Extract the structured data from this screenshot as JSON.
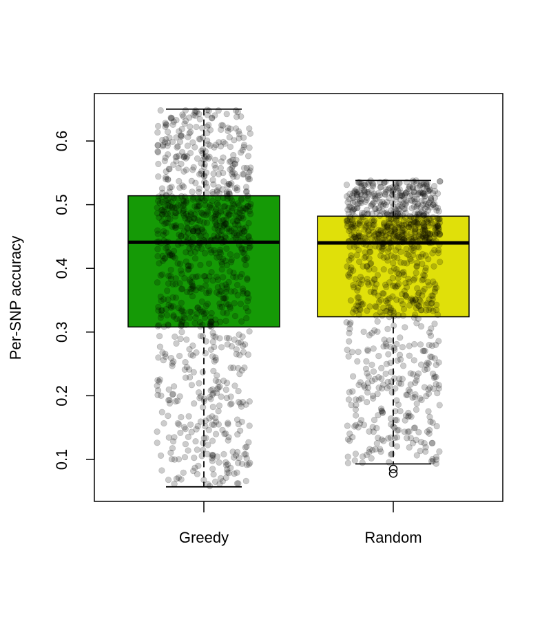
{
  "chart_data": {
    "type": "box",
    "title": "",
    "xlabel": "",
    "ylabel": "Per-SNP accuracy",
    "ylim": [
      0.05,
      0.69
    ],
    "yticks": [
      "0.1",
      "0.2",
      "0.3",
      "0.4",
      "0.5",
      "0.6"
    ],
    "yticks_values": [
      0.1,
      0.2,
      0.3,
      0.4,
      0.5,
      0.6
    ],
    "categories": [
      "Greedy",
      "Random"
    ],
    "boxes": [
      {
        "category": "Greedy",
        "color": "#159a06",
        "whisker_low": 0.057,
        "q1": 0.308,
        "median": 0.441,
        "q3": 0.514,
        "whisker_high": 0.65,
        "outliers": []
      },
      {
        "category": "Random",
        "color": "#e0e00a",
        "whisker_low": 0.093,
        "q1": 0.324,
        "median": 0.44,
        "q3": 0.482,
        "whisker_high": 0.538,
        "outliers": [
          0.085,
          0.078
        ]
      }
    ],
    "jitter_points": "dense semi-transparent grey points (~1000 per group) overlaid on each box spanning the whisker range",
    "grid": false,
    "legend": "none"
  }
}
